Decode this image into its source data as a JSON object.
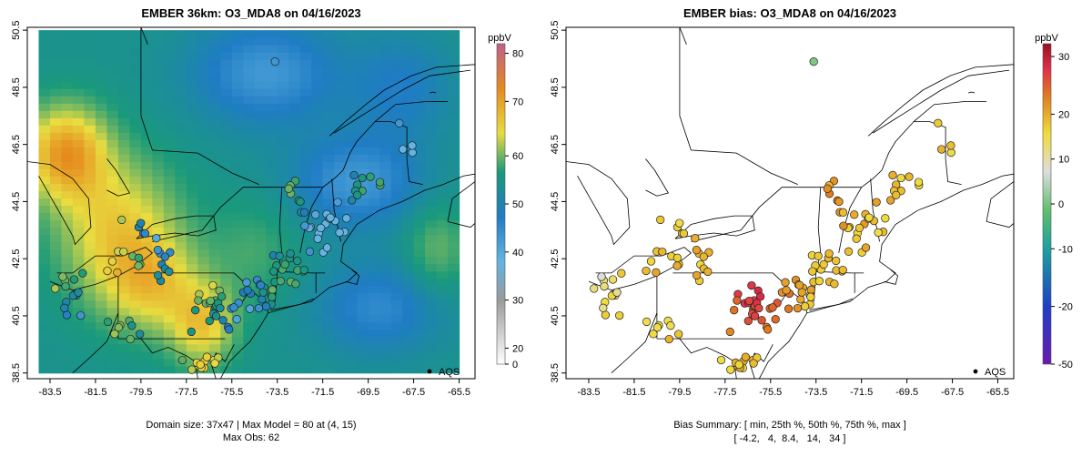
{
  "chart_data": [
    {
      "type": "map-heatmap",
      "title": "EMBER 36km: O3_MDA8 on 04/16/2023",
      "x_ticks": [
        "-83.5",
        "-81.5",
        "-79.5",
        "-77.5",
        "-75.5",
        "-73.5",
        "-71.5",
        "-69.5",
        "-67.5",
        "-65.5"
      ],
      "y_ticks": [
        "38.5",
        "40.5",
        "42.5",
        "44.5",
        "46.5",
        "48.5",
        "50.5"
      ],
      "xlim": [
        -84.5,
        -64.8
      ],
      "ylim": [
        38.3,
        50.6
      ],
      "colorbar": {
        "unit": "ppbV",
        "ticks": [
          "0",
          "20",
          "30",
          "40",
          "50",
          "60",
          "70",
          "80"
        ],
        "range": [
          0,
          82
        ]
      },
      "legend": "AQS",
      "footer_line1": "Domain size: 37x47 | Max Model = 80 at (4, 15)",
      "footer_line2": "Max Obs: 62",
      "obs_summary": {
        "count_shown": 120,
        "max": 62
      }
    },
    {
      "type": "map-scatter",
      "title": "EMBER bias: O3_MDA8 on 04/16/2023",
      "x_ticks": [
        "-83.5",
        "-81.5",
        "-79.5",
        "-77.5",
        "-75.5",
        "-73.5",
        "-71.5",
        "-69.5",
        "-67.5",
        "-65.5"
      ],
      "y_ticks": [
        "38.5",
        "40.5",
        "42.5",
        "44.5",
        "46.5",
        "48.5",
        "50.5"
      ],
      "xlim": [
        -84.5,
        -64.8
      ],
      "ylim": [
        38.3,
        50.6
      ],
      "colorbar": {
        "unit": "ppbV",
        "ticks": [
          "-50",
          "-20",
          "-10",
          "0",
          "10",
          "20",
          "30"
        ],
        "range": [
          -50,
          33
        ]
      },
      "legend": "AQS",
      "bias_summary": {
        "min": -4.2,
        "p25": 4,
        "p50": 8.4,
        "p75": 14,
        "max": 34
      },
      "footer_line1": "Bias Summary: [ min, 25th %, 50th %, 75th %, max ]",
      "footer_line2": "[ -4.2,   4,  8.4,   14,   34 ]"
    }
  ]
}
